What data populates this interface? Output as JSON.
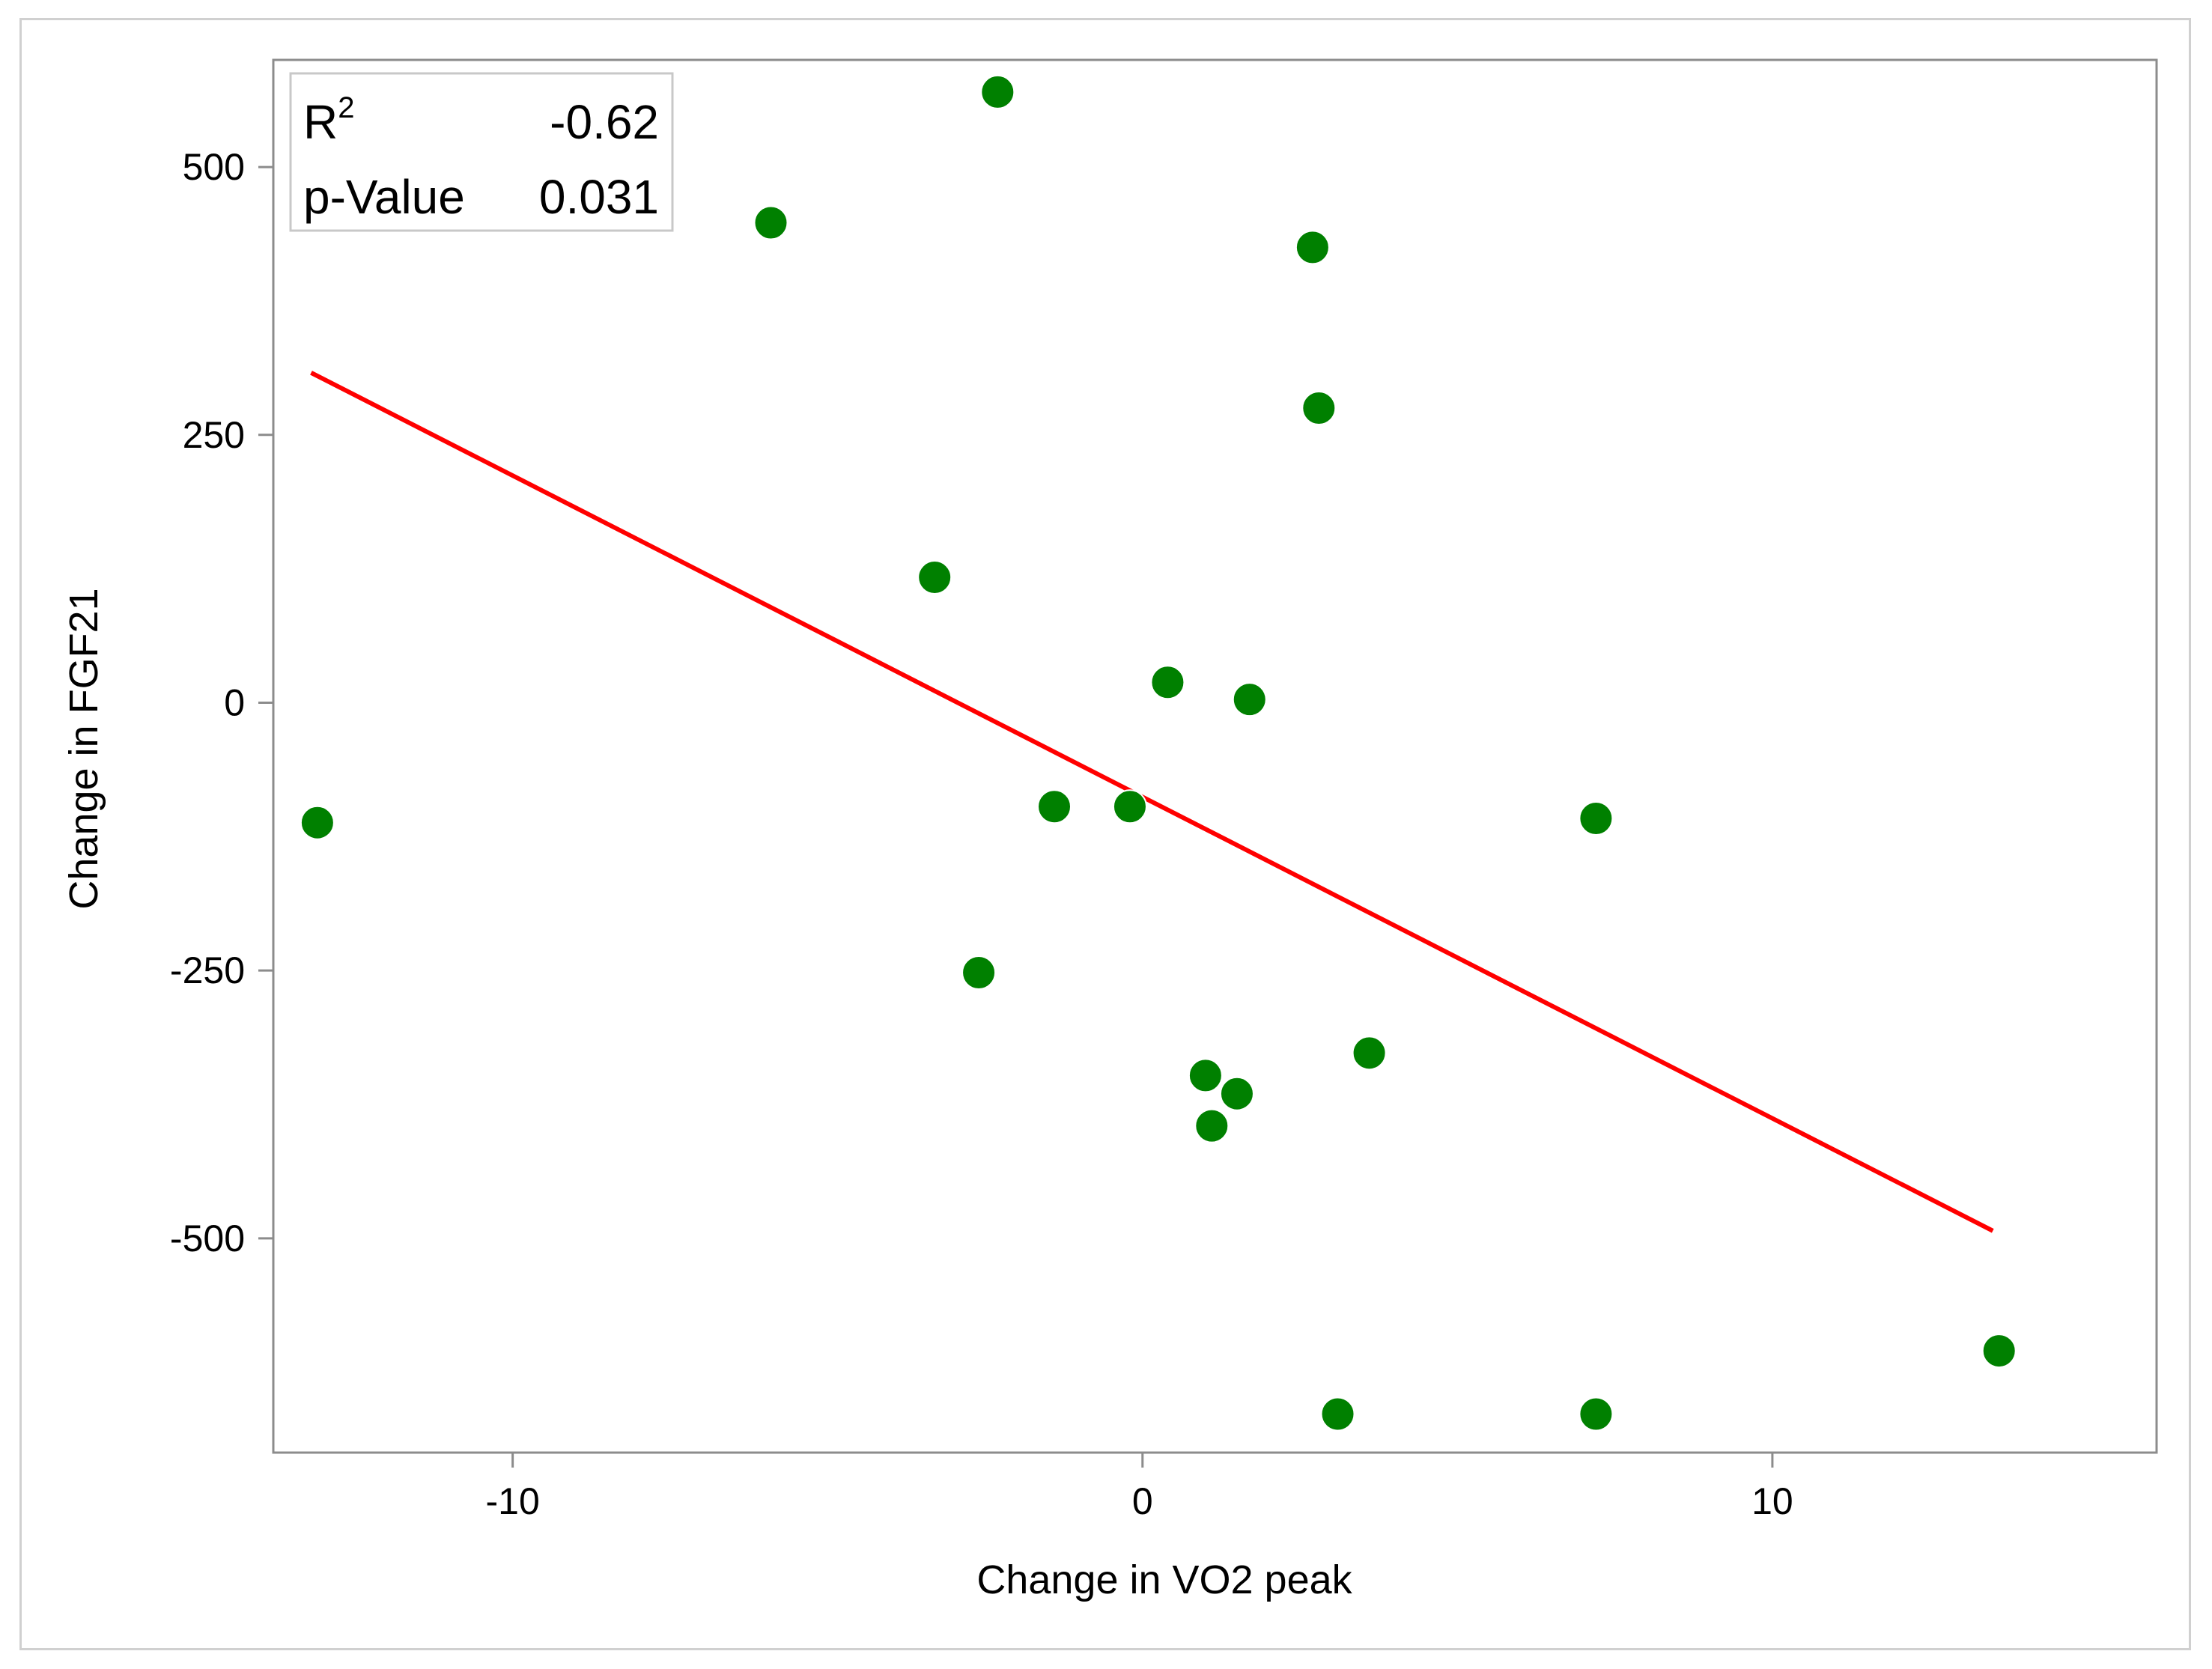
{
  "chart_data": {
    "type": "scatter",
    "xlabel": "Change in VO2 peak",
    "ylabel": "Change in FGF21",
    "xlim": [
      -13.8,
      16.1
    ],
    "ylim": [
      -700,
      600
    ],
    "x_ticks": [
      -10,
      0,
      10
    ],
    "y_ticks": [
      500,
      250,
      0,
      -250,
      -500
    ],
    "grid": false,
    "point_color": "#008000",
    "fit_color": "#ff0000",
    "stats": {
      "r2_label": "R",
      "r2_sup": "2",
      "r2_value": "-0.62",
      "p_label": "p-Value",
      "p_value": "0.031"
    },
    "fit_line": {
      "x": [
        -13.2,
        13.5
      ],
      "y": [
        308,
        -493
      ]
    },
    "series": [
      {
        "x": [
          -13.1,
          -5.9,
          -2.3,
          -3.3,
          -1.4,
          -0.2,
          0.4,
          1.7,
          2.7,
          2.8,
          7.2,
          -2.6,
          1.0,
          1.1,
          1.5,
          3.6,
          3.1,
          7.2,
          13.6
        ],
        "y": [
          -112,
          448,
          570,
          117,
          -97,
          -97,
          19,
          3,
          425,
          275,
          -108,
          -252,
          -348,
          -395,
          -365,
          -327,
          -664,
          -664,
          -605
        ]
      }
    ]
  }
}
